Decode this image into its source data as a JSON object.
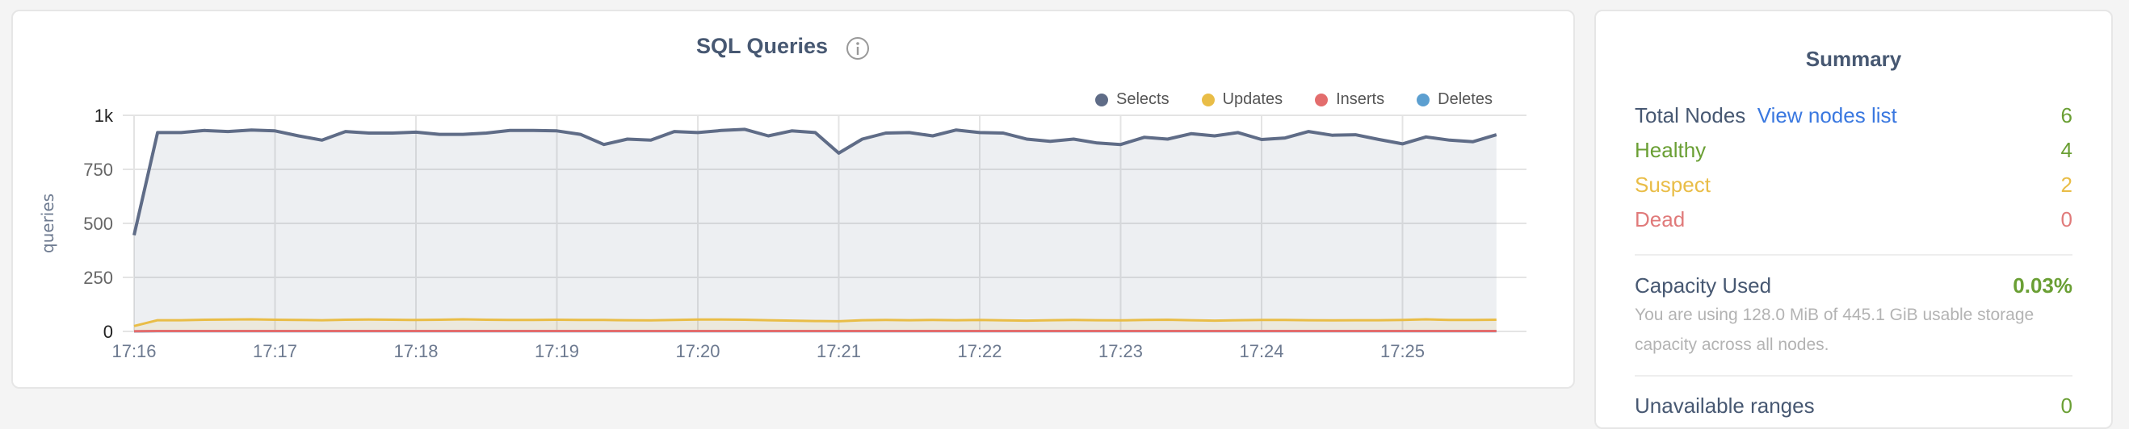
{
  "chart_card": {
    "title": "SQL Queries",
    "info_icon": "info-circle-icon"
  },
  "chart_data": {
    "type": "area",
    "title": "SQL Queries",
    "ylabel": "queries",
    "xlabel": "",
    "ylim": [
      0,
      1000
    ],
    "yticks": [
      "0",
      "250",
      "500",
      "750",
      "1k"
    ],
    "ytick_values": [
      0,
      250,
      500,
      750,
      1000
    ],
    "xticks": [
      "17:16",
      "17:17",
      "17:18",
      "17:19",
      "17:20",
      "17:21",
      "17:22",
      "17:23",
      "17:24",
      "17:25"
    ],
    "x_start": "17:16:00",
    "x_interval_seconds": 10,
    "grid": true,
    "legend_position": "top-right",
    "series": [
      {
        "name": "Selects",
        "color": "#5f6c87",
        "values": [
          445,
          920,
          920,
          930,
          925,
          932,
          928,
          905,
          885,
          925,
          918,
          918,
          922,
          912,
          912,
          918,
          930,
          930,
          928,
          912,
          865,
          890,
          885,
          925,
          920,
          930,
          935,
          905,
          928,
          920,
          825,
          890,
          918,
          920,
          905,
          932,
          920,
          918,
          890,
          880,
          890,
          872,
          865,
          898,
          890,
          915,
          905,
          920,
          888,
          895,
          925,
          908,
          910,
          888,
          868,
          900,
          885,
          878,
          910
        ]
      },
      {
        "name": "Updates",
        "color": "#e9bd47",
        "values": [
          25,
          52,
          52,
          54,
          55,
          56,
          54,
          53,
          52,
          54,
          55,
          54,
          53,
          54,
          56,
          54,
          53,
          53,
          54,
          53,
          53,
          52,
          51,
          53,
          55,
          55,
          54,
          52,
          50,
          48,
          47,
          52,
          53,
          52,
          53,
          52,
          53,
          51,
          50,
          52,
          53,
          52,
          51,
          53,
          54,
          52,
          50,
          52,
          53,
          53,
          52,
          51,
          52,
          52,
          53,
          56,
          53,
          53,
          54
        ]
      },
      {
        "name": "Inserts",
        "color": "#e36d6d",
        "values": [
          1,
          2,
          2,
          2,
          2,
          2,
          2,
          2,
          2,
          2,
          2,
          2,
          2,
          2,
          2,
          2,
          2,
          2,
          2,
          2,
          2,
          2,
          2,
          2,
          2,
          2,
          2,
          2,
          2,
          2,
          2,
          2,
          2,
          2,
          2,
          2,
          2,
          2,
          2,
          2,
          2,
          2,
          2,
          2,
          2,
          2,
          2,
          2,
          2,
          2,
          2,
          2,
          2,
          2,
          2,
          2,
          2,
          2,
          2
        ]
      },
      {
        "name": "Deletes",
        "color": "#5c9fd0",
        "values": [
          0,
          1,
          1,
          1,
          1,
          1,
          1,
          1,
          1,
          1,
          1,
          1,
          1,
          1,
          1,
          1,
          1,
          1,
          1,
          1,
          1,
          1,
          1,
          1,
          1,
          1,
          1,
          1,
          1,
          1,
          1,
          1,
          1,
          1,
          1,
          1,
          1,
          1,
          1,
          1,
          1,
          1,
          1,
          1,
          1,
          1,
          1,
          1,
          1,
          1,
          1,
          1,
          1,
          1,
          1,
          1,
          1,
          1,
          1
        ]
      }
    ]
  },
  "summary": {
    "title": "Summary",
    "total_nodes_label": "Total Nodes",
    "view_nodes_link": "View nodes list",
    "total_nodes": "6",
    "healthy_label": "Healthy",
    "healthy": "4",
    "suspect_label": "Suspect",
    "suspect": "2",
    "dead_label": "Dead",
    "dead": "0",
    "capacity_label": "Capacity Used",
    "capacity_value": "0.03%",
    "capacity_desc": "You are using 128.0 MiB of 445.1 GiB usable storage capacity across all nodes.",
    "unavailable_label": "Unavailable ranges",
    "unavailable_value": "0",
    "colors": {
      "healthy": "#6a9f34",
      "suspect": "#e9bd47",
      "dead": "#e07a7a",
      "link": "#3a78e0",
      "label": "#475872"
    }
  }
}
